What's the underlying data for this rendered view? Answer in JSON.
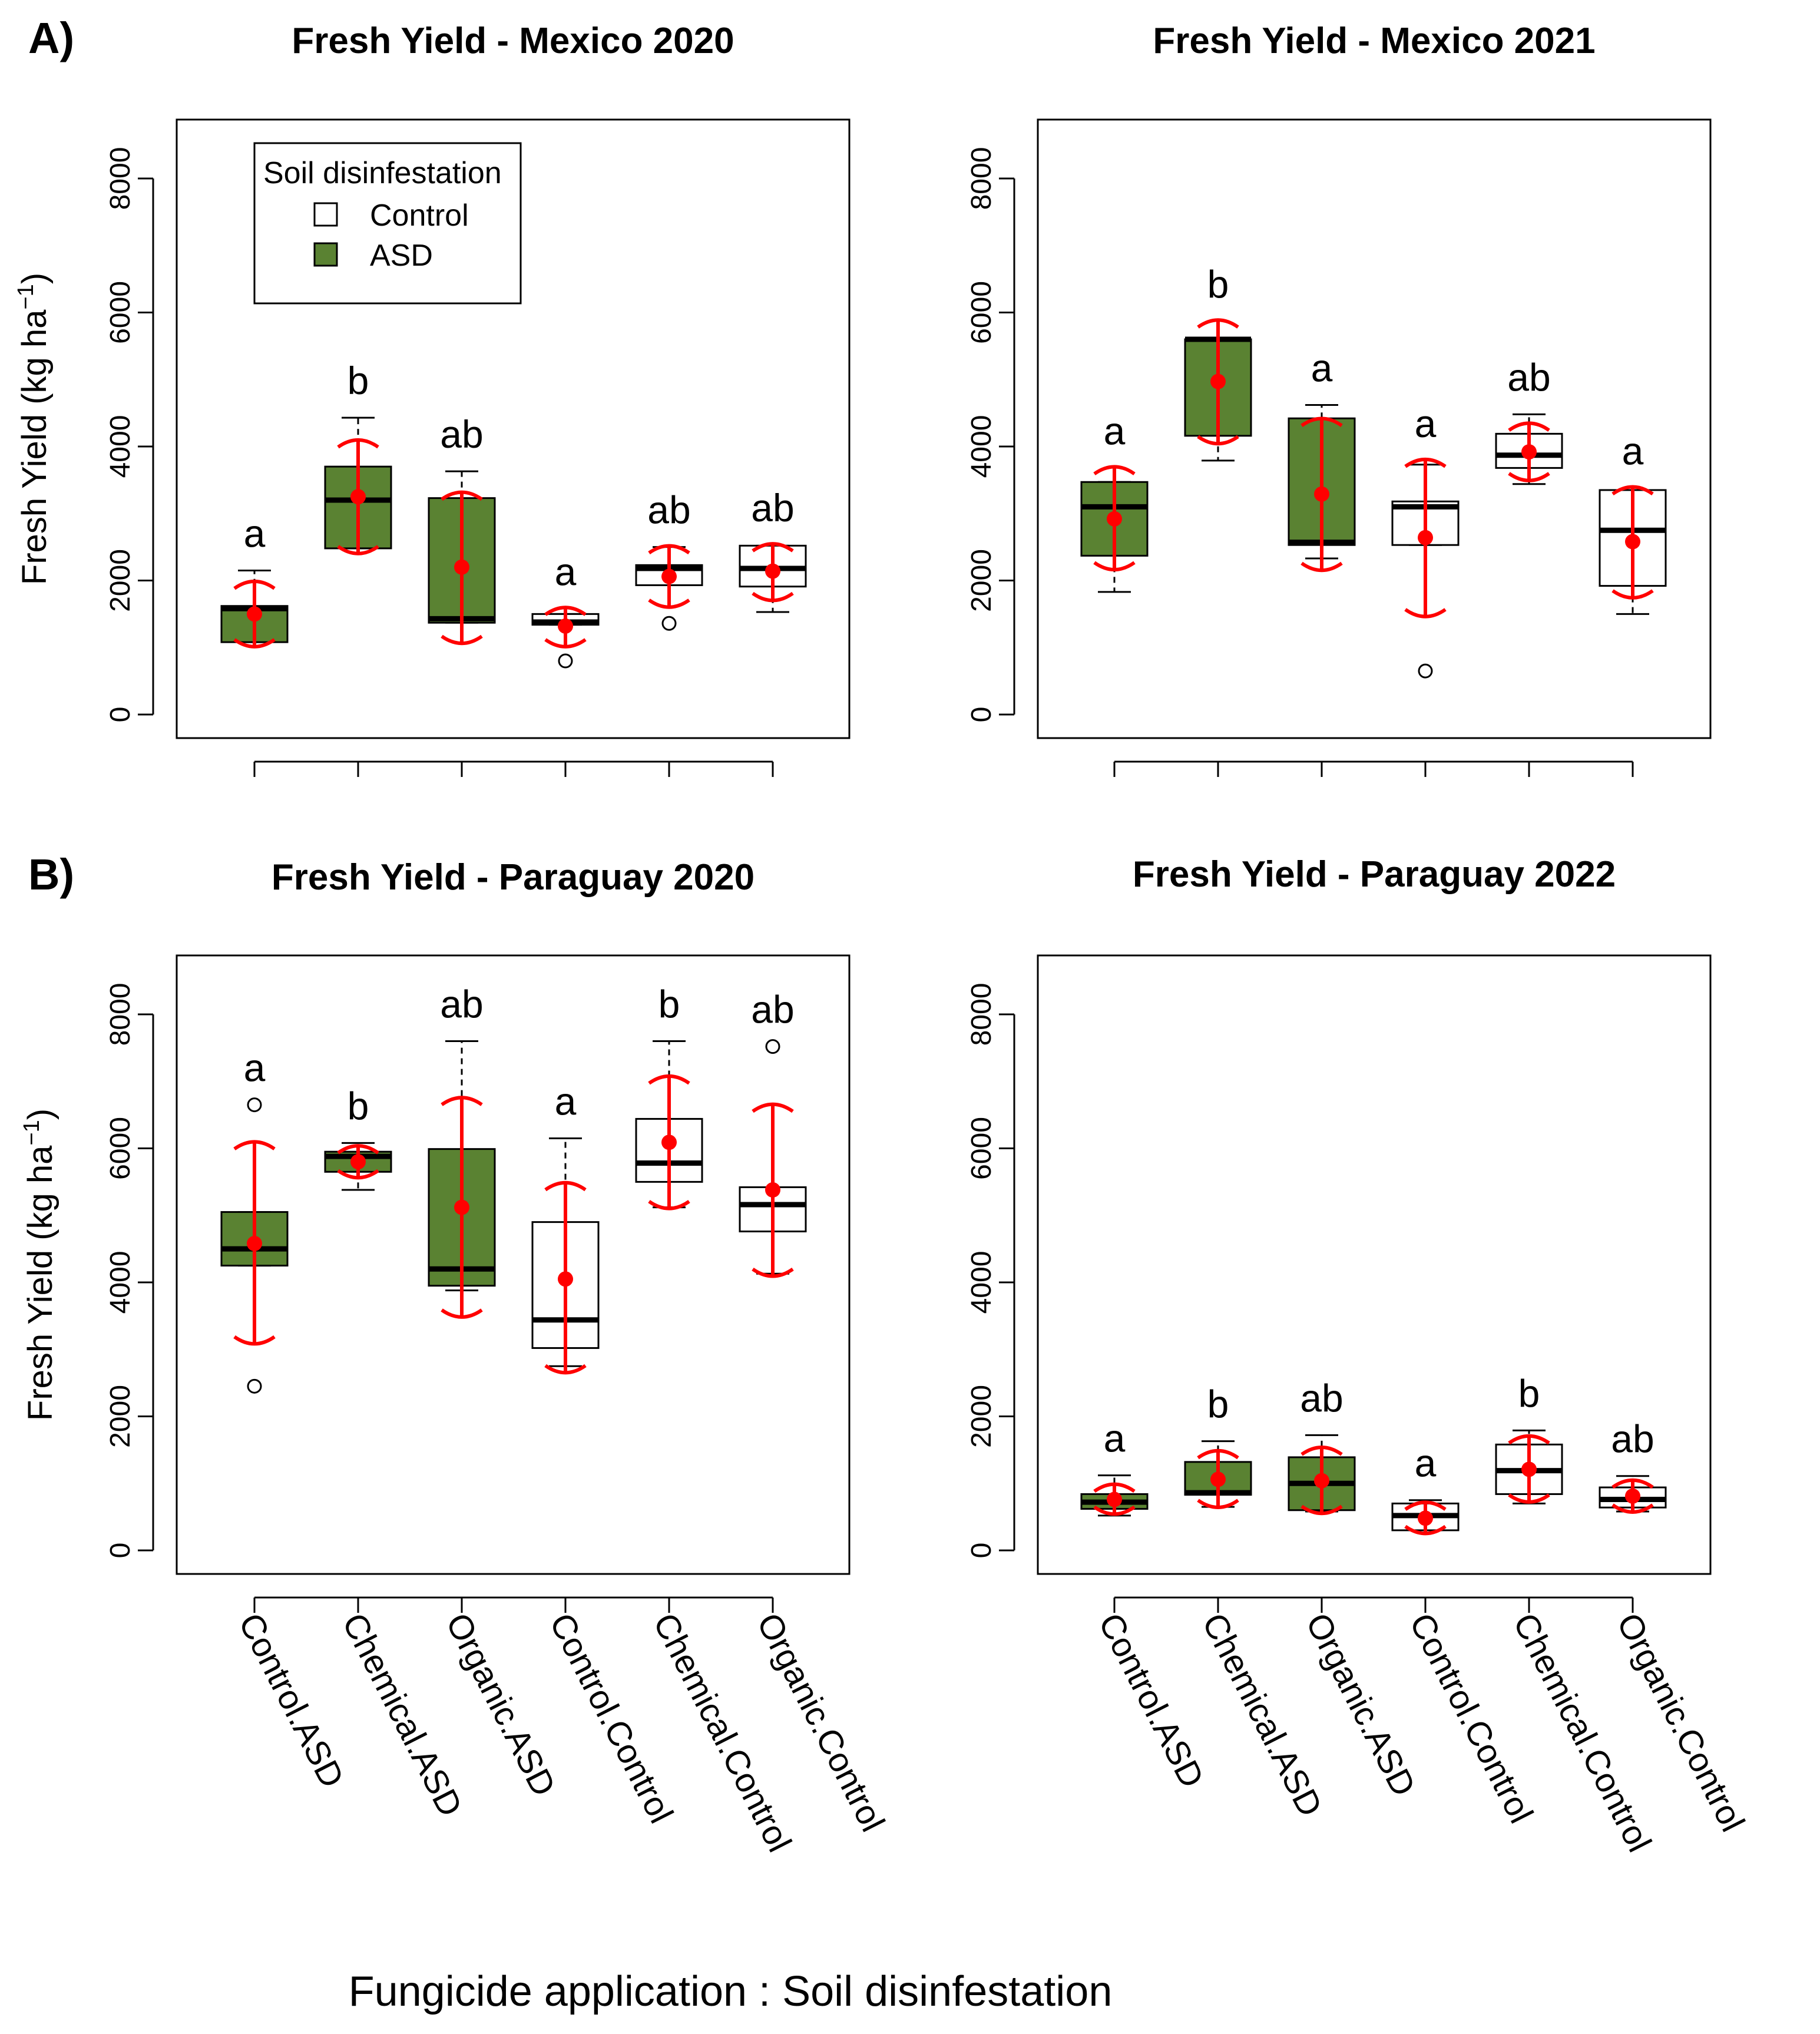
{
  "figure": {
    "panel_letters": [
      "A)",
      "B)"
    ],
    "x_axis_title": "Fungicide application : Soil disinfestation",
    "y_axis_title": "Fresh Yield (kg ha",
    "y_axis_unit_exp": "−1",
    "y_axis_unit_close": ")",
    "legend": {
      "title": "Soil disinfestation",
      "items": [
        {
          "label": "Control",
          "color": "#ffffff"
        },
        {
          "label": "ASD",
          "color": "#5a8232"
        }
      ]
    },
    "colors": {
      "asd": "#5a8232",
      "control": "#ffffff",
      "mean": "#ff0000",
      "axis": "#000000"
    }
  },
  "chart_data": [
    {
      "type": "box",
      "title": "Fresh Yield - Mexico 2020",
      "ylim": [
        0,
        8000
      ],
      "yticks": [
        "0",
        "2000",
        "4000",
        "6000",
        "8000"
      ],
      "categories": [
        "Control.ASD",
        "Chemical.ASD",
        "Organic.ASD",
        "Control.Control",
        "Chemical.Control",
        "Organic.Control"
      ],
      "boxes": [
        {
          "group": "ASD",
          "q1": 1080,
          "median": 1580,
          "q3": 1620,
          "whisker_low": 1080,
          "whisker_high": 2150,
          "outliers": [],
          "mean": 1500,
          "ci_low": 1030,
          "ci_high": 1970,
          "letter": "a"
        },
        {
          "group": "ASD",
          "q1": 2480,
          "median": 3200,
          "q3": 3700,
          "whisker_low": 2480,
          "whisker_high": 4430,
          "outliers": [],
          "mean": 3250,
          "ci_low": 2420,
          "ci_high": 4080,
          "letter": "b"
        },
        {
          "group": "ASD",
          "q1": 1370,
          "median": 1430,
          "q3": 3230,
          "whisker_low": 1370,
          "whisker_high": 3630,
          "outliers": [],
          "mean": 2200,
          "ci_low": 1080,
          "ci_high": 3300,
          "letter": "ab"
        },
        {
          "group": "Control",
          "q1": 1340,
          "median": 1380,
          "q3": 1500,
          "whisker_low": 1340,
          "whisker_high": 1500,
          "outliers": [
            800
          ],
          "mean": 1320,
          "ci_low": 1030,
          "ci_high": 1580,
          "letter": "a"
        },
        {
          "group": "Control",
          "q1": 1930,
          "median": 2180,
          "q3": 2230,
          "whisker_low": 1930,
          "whisker_high": 2500,
          "outliers": [
            1360
          ],
          "mean": 2060,
          "ci_low": 1620,
          "ci_high": 2500,
          "letter": "ab"
        },
        {
          "group": "Control",
          "q1": 1910,
          "median": 2180,
          "q3": 2520,
          "whisker_low": 1530,
          "whisker_high": 2520,
          "outliers": [],
          "mean": 2140,
          "ci_low": 1720,
          "ci_high": 2530,
          "letter": "ab"
        }
      ],
      "show_legend": true
    },
    {
      "type": "box",
      "title": "Fresh Yield - Mexico 2021",
      "ylim": [
        0,
        8000
      ],
      "yticks": [
        "0",
        "2000",
        "4000",
        "6000",
        "8000"
      ],
      "categories": [
        "Control.ASD",
        "Chemical.ASD",
        "Organic.ASD",
        "Control.Control",
        "Chemical.Control",
        "Organic.Control"
      ],
      "boxes": [
        {
          "group": "ASD",
          "q1": 2370,
          "median": 3100,
          "q3": 3470,
          "whisker_low": 1830,
          "whisker_high": 3470,
          "outliers": [],
          "mean": 2920,
          "ci_low": 2180,
          "ci_high": 3680,
          "letter": "a"
        },
        {
          "group": "ASD",
          "q1": 4160,
          "median": 5600,
          "q3": 5600,
          "whisker_low": 3790,
          "whisker_high": 5600,
          "outliers": [],
          "mean": 4970,
          "ci_low": 4060,
          "ci_high": 5870,
          "letter": "b"
        },
        {
          "group": "ASD",
          "q1": 2530,
          "median": 2570,
          "q3": 4420,
          "whisker_low": 2330,
          "whisker_high": 4620,
          "outliers": [],
          "mean": 3290,
          "ci_low": 2170,
          "ci_high": 4400,
          "letter": "a"
        },
        {
          "group": "Control",
          "q1": 2530,
          "median": 3100,
          "q3": 3180,
          "whisker_low": 2530,
          "whisker_high": 3730,
          "outliers": [
            650
          ],
          "mean": 2640,
          "ci_low": 1480,
          "ci_high": 3790,
          "letter": "a"
        },
        {
          "group": "Control",
          "q1": 3680,
          "median": 3870,
          "q3": 4190,
          "whisker_low": 3440,
          "whisker_high": 4480,
          "outliers": [],
          "mean": 3920,
          "ci_low": 3510,
          "ci_high": 4330,
          "letter": "ab"
        },
        {
          "group": "Control",
          "q1": 1920,
          "median": 2750,
          "q3": 3350,
          "whisker_low": 1500,
          "whisker_high": 3350,
          "outliers": [],
          "mean": 2580,
          "ci_low": 1760,
          "ci_high": 3380,
          "letter": "a"
        }
      ],
      "show_legend": false
    },
    {
      "type": "box",
      "title": "Fresh Yield - Paraguay 2020",
      "ylim": [
        0,
        8000
      ],
      "yticks": [
        "0",
        "2000",
        "4000",
        "6000",
        "8000"
      ],
      "categories": [
        "Control.ASD",
        "Chemical.ASD",
        "Organic.ASD",
        "Control.Control",
        "Chemical.Control",
        "Organic.Control"
      ],
      "boxes": [
        {
          "group": "ASD",
          "q1": 4250,
          "median": 4500,
          "q3": 5050,
          "whisker_low": 4250,
          "whisker_high": 5050,
          "outliers": [
            6650,
            2450
          ],
          "mean": 4580,
          "ci_low": 3100,
          "ci_high": 6080,
          "letter": "a"
        },
        {
          "group": "ASD",
          "q1": 5650,
          "median": 5880,
          "q3": 5950,
          "whisker_low": 5380,
          "whisker_high": 6080,
          "outliers": [],
          "mean": 5800,
          "ci_low": 5580,
          "ci_high": 6020,
          "letter": "b"
        },
        {
          "group": "ASD",
          "q1": 3950,
          "median": 4200,
          "q3": 5990,
          "whisker_low": 3880,
          "whisker_high": 7600,
          "outliers": [],
          "mean": 5120,
          "ci_low": 3500,
          "ci_high": 6740,
          "letter": "ab"
        },
        {
          "group": "Control",
          "q1": 3020,
          "median": 3440,
          "q3": 4900,
          "whisker_low": 2750,
          "whisker_high": 6150,
          "outliers": [],
          "mean": 4050,
          "ci_low": 2670,
          "ci_high": 5470,
          "letter": "a"
        },
        {
          "group": "Control",
          "q1": 5500,
          "median": 5780,
          "q3": 6440,
          "whisker_low": 5120,
          "whisker_high": 7600,
          "outliers": [],
          "mean": 6090,
          "ci_low": 5120,
          "ci_high": 7060,
          "letter": "b"
        },
        {
          "group": "Control",
          "q1": 4760,
          "median": 5160,
          "q3": 5420,
          "whisker_low": 4130,
          "whisker_high": 5420,
          "outliers": [
            7520
          ],
          "mean": 5380,
          "ci_low": 4110,
          "ci_high": 6640,
          "letter": "ab"
        }
      ],
      "show_legend": false
    },
    {
      "type": "box",
      "title": "Fresh Yield - Paraguay 2022",
      "ylim": [
        0,
        8000
      ],
      "yticks": [
        "0",
        "2000",
        "4000",
        "6000",
        "8000"
      ],
      "categories": [
        "Control.ASD",
        "Chemical.ASD",
        "Organic.ASD",
        "Control.Control",
        "Chemical.Control",
        "Organic.Control"
      ],
      "boxes": [
        {
          "group": "ASD",
          "q1": 620,
          "median": 720,
          "q3": 840,
          "whisker_low": 520,
          "whisker_high": 1120,
          "outliers": [],
          "mean": 760,
          "ci_low": 560,
          "ci_high": 970,
          "letter": "a"
        },
        {
          "group": "ASD",
          "q1": 830,
          "median": 860,
          "q3": 1320,
          "whisker_low": 650,
          "whisker_high": 1630,
          "outliers": [],
          "mean": 1060,
          "ci_low": 660,
          "ci_high": 1470,
          "letter": "b"
        },
        {
          "group": "ASD",
          "q1": 600,
          "median": 1000,
          "q3": 1390,
          "whisker_low": 580,
          "whisker_high": 1720,
          "outliers": [],
          "mean": 1040,
          "ci_low": 570,
          "ci_high": 1520,
          "letter": "ab"
        },
        {
          "group": "Control",
          "q1": 300,
          "median": 520,
          "q3": 700,
          "whisker_low": 300,
          "whisker_high": 750,
          "outliers": [],
          "mean": 480,
          "ci_low": 270,
          "ci_high": 700,
          "letter": "a"
        },
        {
          "group": "Control",
          "q1": 840,
          "median": 1190,
          "q3": 1580,
          "whisker_low": 700,
          "whisker_high": 1790,
          "outliers": [],
          "mean": 1210,
          "ci_low": 740,
          "ci_high": 1690,
          "letter": "b"
        },
        {
          "group": "Control",
          "q1": 640,
          "median": 760,
          "q3": 940,
          "whisker_low": 580,
          "whisker_high": 1110,
          "outliers": [],
          "mean": 810,
          "ci_low": 590,
          "ci_high": 1030,
          "letter": "ab"
        }
      ],
      "show_legend": false
    }
  ]
}
